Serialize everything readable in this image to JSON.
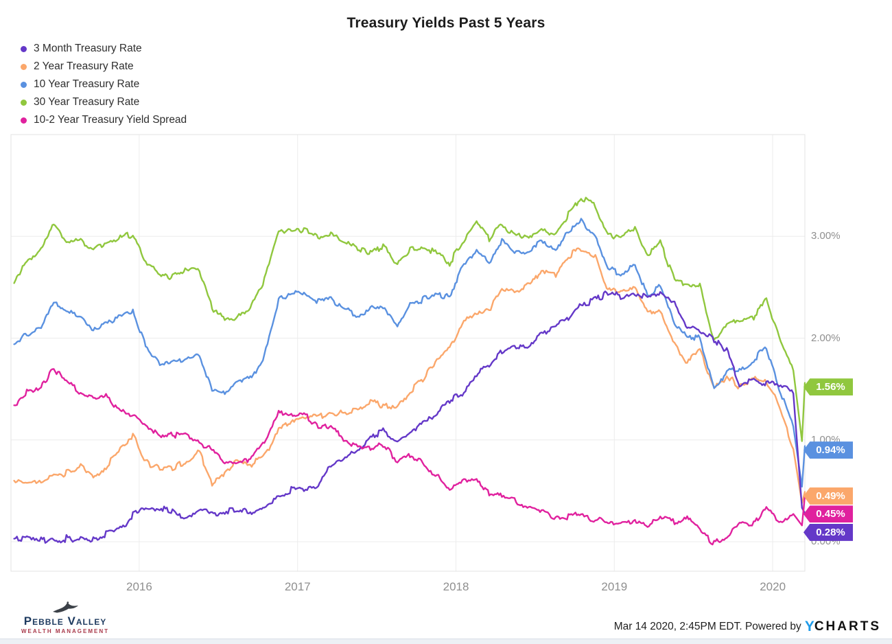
{
  "title": "Treasury Yields Past 5 Years",
  "chart_data": {
    "type": "line",
    "grid": true,
    "legend_position": "top-left",
    "ylim": [
      -0.29,
      4.0
    ],
    "xlim_years": [
      2015.19,
      2020.203
    ],
    "y_ticks": [
      {
        "value": 3,
        "label": "3.00%"
      },
      {
        "value": 2,
        "label": "2.00%"
      },
      {
        "value": 1,
        "label": "1.00%"
      },
      {
        "value": 0,
        "label": "0.00%"
      }
    ],
    "x_ticks": [
      {
        "value": 2016,
        "label": "2016"
      },
      {
        "value": 2017,
        "label": "2017"
      },
      {
        "value": 2018,
        "label": "2018"
      },
      {
        "value": 2019,
        "label": "2019"
      },
      {
        "value": 2020,
        "label": "2020"
      }
    ],
    "x_years": [
      2015.21,
      2015.29,
      2015.38,
      2015.46,
      2015.54,
      2015.63,
      2015.71,
      2015.79,
      2015.88,
      2015.96,
      2016.04,
      2016.13,
      2016.21,
      2016.29,
      2016.38,
      2016.46,
      2016.54,
      2016.63,
      2016.71,
      2016.79,
      2016.88,
      2016.96,
      2017.04,
      2017.13,
      2017.21,
      2017.29,
      2017.38,
      2017.46,
      2017.54,
      2017.63,
      2017.71,
      2017.79,
      2017.88,
      2017.96,
      2018.04,
      2018.13,
      2018.21,
      2018.29,
      2018.38,
      2018.46,
      2018.54,
      2018.63,
      2018.71,
      2018.79,
      2018.88,
      2018.96,
      2019.04,
      2019.13,
      2019.21,
      2019.29,
      2019.38,
      2019.46,
      2019.54,
      2019.63,
      2019.71,
      2019.79,
      2019.88,
      2019.96,
      2020.04,
      2020.13,
      2020.185,
      2020.203
    ],
    "series": [
      {
        "id": "three-month",
        "name": "3 Month Treasury Rate",
        "color": "#6438c8",
        "last_value_label": "0.28%",
        "values": [
          0.03,
          0.02,
          0.01,
          0.02,
          0.03,
          0.03,
          0.01,
          0.08,
          0.12,
          0.26,
          0.31,
          0.33,
          0.3,
          0.23,
          0.32,
          0.26,
          0.3,
          0.33,
          0.29,
          0.34,
          0.45,
          0.51,
          0.52,
          0.53,
          0.76,
          0.81,
          0.9,
          1.03,
          1.08,
          1.01,
          1.06,
          1.15,
          1.27,
          1.39,
          1.46,
          1.65,
          1.73,
          1.87,
          1.93,
          1.93,
          2.03,
          2.11,
          2.19,
          2.34,
          2.37,
          2.45,
          2.41,
          2.45,
          2.4,
          2.43,
          2.35,
          2.12,
          2.08,
          1.99,
          1.88,
          1.54,
          1.59,
          1.55,
          1.55,
          1.46,
          0.33,
          0.28
        ]
      },
      {
        "id": "two-year",
        "name": "2 Year Treasury Rate",
        "color": "#fba76b",
        "last_value_label": "0.49%",
        "values": [
          0.6,
          0.58,
          0.61,
          0.64,
          0.67,
          0.74,
          0.64,
          0.73,
          0.93,
          1.05,
          0.78,
          0.72,
          0.73,
          0.78,
          0.88,
          0.58,
          0.67,
          0.8,
          0.77,
          0.84,
          1.11,
          1.2,
          1.21,
          1.22,
          1.27,
          1.28,
          1.28,
          1.38,
          1.34,
          1.33,
          1.47,
          1.6,
          1.78,
          1.89,
          2.14,
          2.25,
          2.27,
          2.49,
          2.43,
          2.52,
          2.67,
          2.63,
          2.81,
          2.87,
          2.8,
          2.48,
          2.45,
          2.51,
          2.27,
          2.27,
          1.95,
          1.75,
          1.89,
          1.5,
          1.63,
          1.52,
          1.61,
          1.58,
          1.33,
          0.91,
          0.38,
          0.49
        ]
      },
      {
        "id": "ten-year",
        "name": "10 Year Treasury Rate",
        "color": "#5a91e0",
        "last_value_label": "0.94%",
        "values": [
          1.94,
          2.05,
          2.12,
          2.35,
          2.25,
          2.21,
          2.06,
          2.16,
          2.22,
          2.27,
          1.94,
          1.74,
          1.78,
          1.81,
          1.84,
          1.49,
          1.46,
          1.57,
          1.6,
          1.84,
          2.37,
          2.45,
          2.45,
          2.36,
          2.4,
          2.29,
          2.21,
          2.31,
          2.3,
          2.12,
          2.33,
          2.38,
          2.42,
          2.4,
          2.72,
          2.87,
          2.74,
          2.95,
          2.83,
          2.85,
          2.96,
          2.86,
          3.05,
          3.15,
          3.01,
          2.69,
          2.63,
          2.73,
          2.41,
          2.51,
          2.14,
          2.0,
          2.02,
          1.5,
          1.68,
          1.69,
          1.78,
          1.92,
          1.51,
          1.13,
          0.54,
          0.94
        ]
      },
      {
        "id": "thirty-year",
        "name": "30 Year Treasury Rate",
        "color": "#90c73e",
        "last_value_label": "1.56%",
        "values": [
          2.54,
          2.75,
          2.88,
          3.11,
          2.96,
          2.96,
          2.87,
          2.93,
          3.0,
          3.01,
          2.75,
          2.62,
          2.61,
          2.68,
          2.65,
          2.3,
          2.18,
          2.23,
          2.32,
          2.58,
          3.04,
          3.06,
          3.05,
          3.0,
          3.02,
          2.96,
          2.87,
          2.84,
          2.9,
          2.73,
          2.86,
          2.88,
          2.83,
          2.74,
          2.94,
          3.13,
          2.97,
          3.12,
          3.0,
          2.99,
          3.08,
          3.02,
          3.21,
          3.39,
          3.3,
          3.02,
          3.0,
          3.09,
          2.82,
          2.93,
          2.58,
          2.53,
          2.53,
          1.96,
          2.11,
          2.18,
          2.21,
          2.39,
          2.0,
          1.68,
          0.99,
          1.56
        ]
      },
      {
        "id": "ten-two-spread",
        "name": "10-2 Year Treasury Yield Spread",
        "color": "#e0219e",
        "last_value_label": "0.45%",
        "values": [
          1.34,
          1.47,
          1.51,
          1.71,
          1.58,
          1.47,
          1.42,
          1.43,
          1.29,
          1.22,
          1.16,
          1.02,
          1.05,
          1.03,
          0.96,
          0.91,
          0.79,
          0.77,
          0.83,
          1.0,
          1.26,
          1.25,
          1.24,
          1.14,
          1.13,
          1.01,
          0.93,
          0.93,
          0.96,
          0.79,
          0.86,
          0.78,
          0.64,
          0.51,
          0.58,
          0.62,
          0.47,
          0.46,
          0.4,
          0.33,
          0.29,
          0.23,
          0.24,
          0.28,
          0.21,
          0.21,
          0.18,
          0.22,
          0.14,
          0.24,
          0.19,
          0.25,
          0.13,
          -0.02,
          0.05,
          0.17,
          0.17,
          0.34,
          0.18,
          0.27,
          0.16,
          0.45
        ]
      }
    ]
  },
  "footer": {
    "brand": {
      "name_top": "Pebble Valley",
      "name_bottom": "WEALTH MANAGEMENT"
    },
    "attribution_text": "Mar 14 2020, 2:45PM EDT. Powered by",
    "ycharts_y": "Y",
    "ycharts_rest": "CHARTS"
  }
}
